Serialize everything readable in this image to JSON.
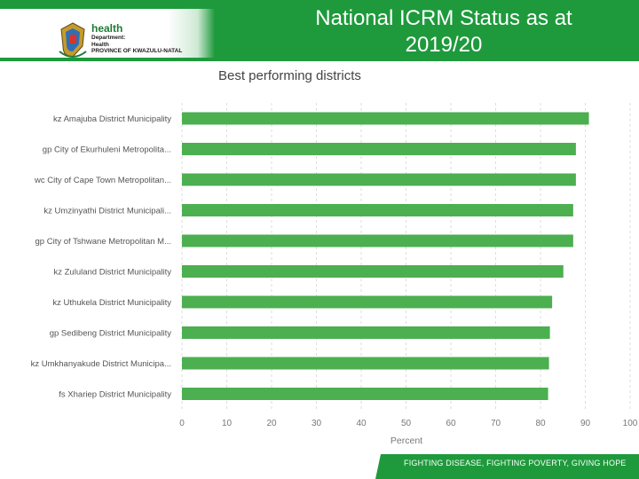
{
  "header": {
    "logo_word": "health",
    "logo_lines": [
      "Department:",
      "Health",
      "PROVINCE OF KWAZULU-NATAL"
    ],
    "title_line1": "National ICRM Status as at",
    "title_line2": "2019/20",
    "background_color": "#1e9a3c"
  },
  "footer": {
    "text": "FIGHTING DISEASE, FIGHTING POVERTY, GIVING HOPE"
  },
  "chart_data": {
    "type": "bar",
    "orientation": "horizontal",
    "title": "Best performing districts",
    "xlabel": "Percent",
    "ylabel": "",
    "xlim": [
      0,
      100
    ],
    "xticks": [
      0,
      10,
      20,
      30,
      40,
      50,
      60,
      70,
      80,
      90,
      100
    ],
    "grid": true,
    "bar_color": "#4caf50",
    "categories": [
      "kz Amajuba District Municipality",
      "gp City of Ekurhuleni Metropolita...",
      "wc City of Cape Town Metropolitan...",
      "kz Umzinyathi District Municipali...",
      "gp City of Tshwane Metropolitan M...",
      "kz Zululand District Municipality",
      "kz Uthukela District Municipality",
      "gp Sedibeng District Municipality",
      "kz Umkhanyakude District Municipa...",
      "fs Xhariep District Municipality"
    ],
    "values": [
      90.8,
      87.9,
      87.9,
      87.3,
      87.3,
      85.1,
      82.6,
      82.1,
      81.9,
      81.7
    ]
  }
}
